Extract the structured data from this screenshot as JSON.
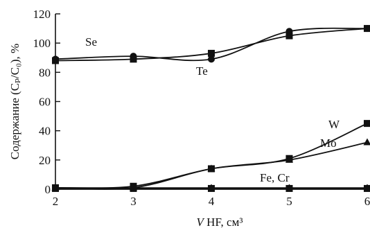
{
  "chart_data": {
    "type": "line",
    "ylabel": "Содержание (Cₚ/C₀), %",
    "xlabel": "V HF, см³",
    "xlim": [
      2,
      6
    ],
    "ylim": [
      0,
      120
    ],
    "x_ticks": [
      2,
      3,
      4,
      5,
      6
    ],
    "y_ticks": [
      0,
      20,
      40,
      60,
      80,
      100,
      120
    ],
    "grid": false,
    "series": [
      {
        "name": "Se",
        "marker": "circle",
        "x": [
          2,
          3,
          4,
          5,
          6
        ],
        "y": [
          89,
          91,
          89,
          108,
          110
        ]
      },
      {
        "name": "Te",
        "marker": "square",
        "x": [
          2,
          3,
          4,
          5,
          6
        ],
        "y": [
          88,
          89,
          93,
          105,
          110
        ]
      },
      {
        "name": "W",
        "marker": "square",
        "x": [
          2,
          3,
          4,
          5,
          6
        ],
        "y": [
          1,
          2,
          14,
          21,
          45
        ]
      },
      {
        "name": "Mo",
        "marker": "triangle",
        "x": [
          2,
          3,
          4,
          5,
          6
        ],
        "y": [
          1,
          1,
          14,
          20,
          32
        ]
      },
      {
        "name": "Fe, Cr",
        "marker": "square",
        "x": [
          2,
          3,
          4,
          5,
          6
        ],
        "y": [
          0.5,
          0.5,
          0.5,
          0.5,
          0.5
        ]
      }
    ]
  }
}
